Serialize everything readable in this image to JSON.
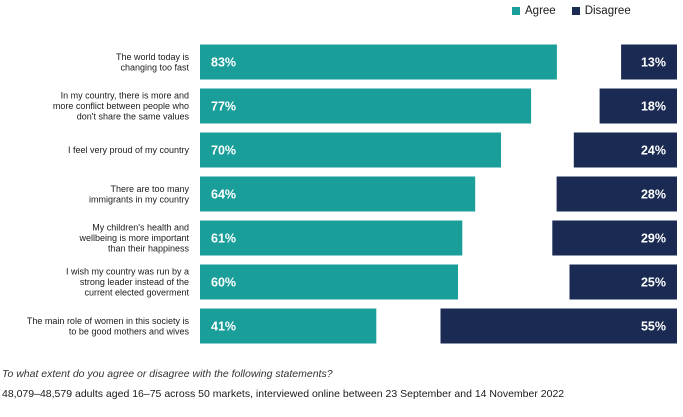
{
  "chart_data": {
    "type": "bar",
    "orientation": "horizontal",
    "stacking": "diverging",
    "categories": [
      [
        "The world today is",
        "changing too fast"
      ],
      [
        "In my country, there is more and",
        "more conflict between people who",
        "don't share the same values"
      ],
      [
        "I feel very proud of my country"
      ],
      [
        "There are too many",
        "immigrants in my country"
      ],
      [
        "My children's health and",
        "wellbeing is more important",
        "than their happiness"
      ],
      [
        "I wish my country was run by a",
        "strong leader instead of the",
        "current elected goverment"
      ],
      [
        "The main role of women in this society is",
        "to be good mothers and wives"
      ]
    ],
    "series": [
      {
        "name": "Agree",
        "color": "#1a9e9a",
        "values": [
          83,
          77,
          70,
          64,
          61,
          60,
          41
        ]
      },
      {
        "name": "Disagree",
        "color": "#1a2a52",
        "values": [
          13,
          18,
          24,
          28,
          29,
          25,
          55
        ]
      }
    ],
    "value_suffix": "%",
    "legend_position": "top-right",
    "grid": false
  },
  "footnote": {
    "question": "To what extent do you agree or disagree with the following statements?",
    "sample": "48,079–48,579 adults aged 16–75 across 50 markets, interviewed online between 23 September and 14 November 2022"
  }
}
